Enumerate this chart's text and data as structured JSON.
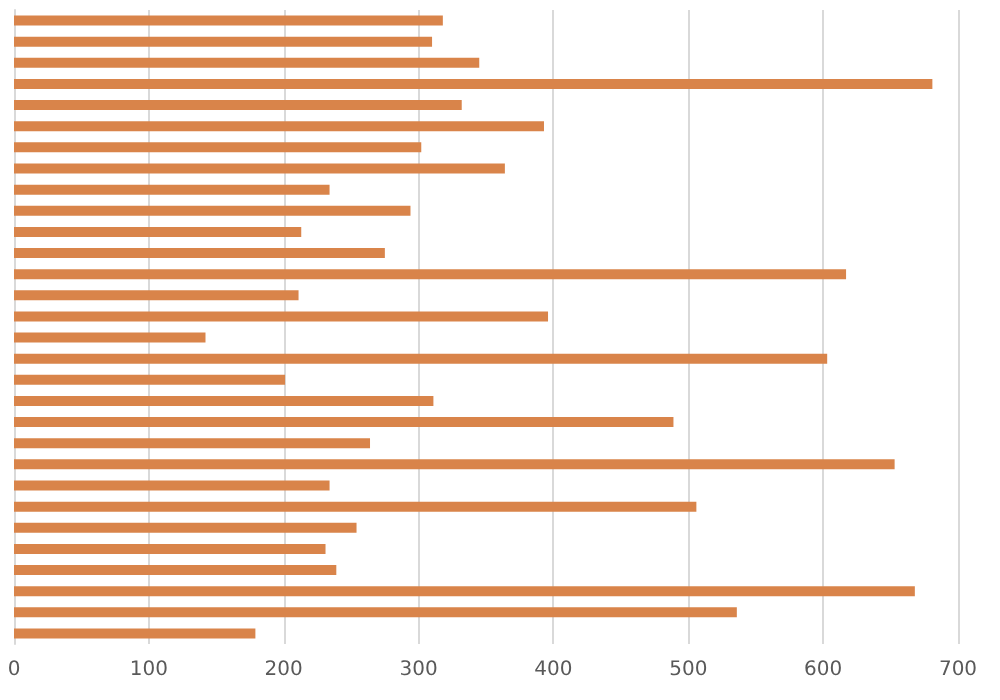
{
  "chart_data": {
    "type": "bar",
    "orientation": "horizontal",
    "categories": [
      null,
      null,
      null,
      null,
      null,
      null,
      null,
      null,
      null,
      null,
      null,
      null,
      null,
      null,
      null,
      null,
      null,
      null,
      null,
      null,
      null,
      null,
      null,
      null,
      null,
      null,
      null,
      null,
      null,
      null
    ],
    "values": [
      318,
      310,
      345,
      681,
      332,
      393,
      302,
      364,
      234,
      294,
      213,
      275,
      617,
      211,
      396,
      142,
      603,
      201,
      311,
      489,
      264,
      653,
      234,
      506,
      254,
      231,
      239,
      668,
      536,
      179
    ],
    "color": "#d9844a",
    "xlim": [
      0,
      700
    ],
    "xticks": [
      0,
      100,
      200,
      300,
      400,
      500,
      600,
      700
    ],
    "grid": "x",
    "tick_labels": "x"
  }
}
